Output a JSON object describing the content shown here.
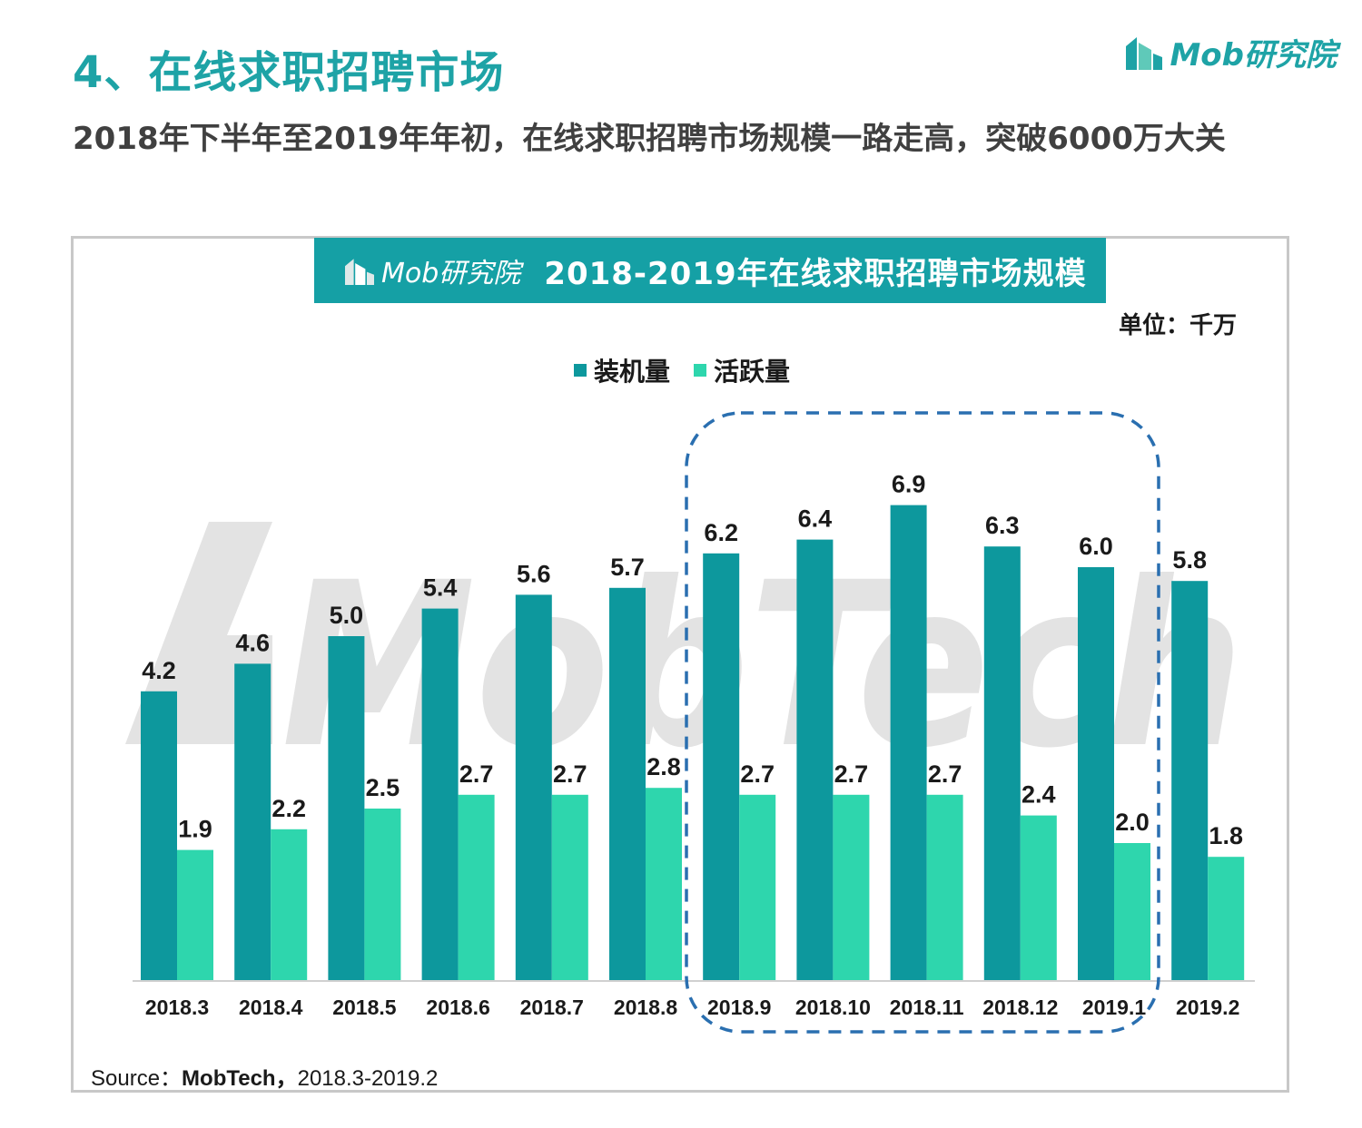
{
  "header": {
    "heading": "4、在线求职招聘市场",
    "subtitle": "2018年下半年至2019年年初，在线求职招聘市场规模一路走高，突破6000万大关",
    "brand_logo": "Mob研究院"
  },
  "chart_header": {
    "brand": "Mob研究院",
    "title": "2018-2019年在线求职招聘市场规模",
    "unit": "单位：千万"
  },
  "watermark": "MobTech",
  "colors": {
    "install": "#0d989d",
    "active": "#2ed6ad",
    "accent": "#1ea3a6",
    "highlight_border": "#2a6fb0"
  },
  "source": {
    "prefix": "Source：",
    "org": "MobTech，",
    "range": "2018.3-2019.2"
  },
  "chart_data": {
    "type": "bar",
    "title": "2018-2019年在线求职招聘市场规模",
    "unit": "单位：千万",
    "categories": [
      "2018.3",
      "2018.4",
      "2018.5",
      "2018.6",
      "2018.7",
      "2018.8",
      "2018.9",
      "2018.10",
      "2018.11",
      "2018.12",
      "2019.1",
      "2019.2"
    ],
    "series": [
      {
        "name": "装机量",
        "values": [
          4.2,
          4.6,
          5.0,
          5.4,
          5.6,
          5.7,
          6.2,
          6.4,
          6.9,
          6.3,
          6.0,
          5.8
        ],
        "labels": [
          "4.2",
          "4.6",
          "5.0",
          "5.4",
          "5.6",
          "5.7",
          "6.2",
          "6.4",
          "6.9",
          "6.3",
          "6.0",
          "5.8"
        ]
      },
      {
        "name": "活跃量",
        "values": [
          1.9,
          2.2,
          2.5,
          2.7,
          2.7,
          2.8,
          2.7,
          2.7,
          2.7,
          2.4,
          2.0,
          1.8
        ],
        "labels": [
          "1.9",
          "2.2",
          "2.5",
          "2.7",
          "2.7",
          "2.8",
          "2.7",
          "2.7",
          "2.7",
          "2.4",
          "2.0",
          "1.8"
        ]
      }
    ],
    "ylim": [
      0,
      7.5
    ],
    "grid": false,
    "legend": "top-center",
    "highlight_range": [
      "2018.9",
      "2019.1"
    ]
  }
}
